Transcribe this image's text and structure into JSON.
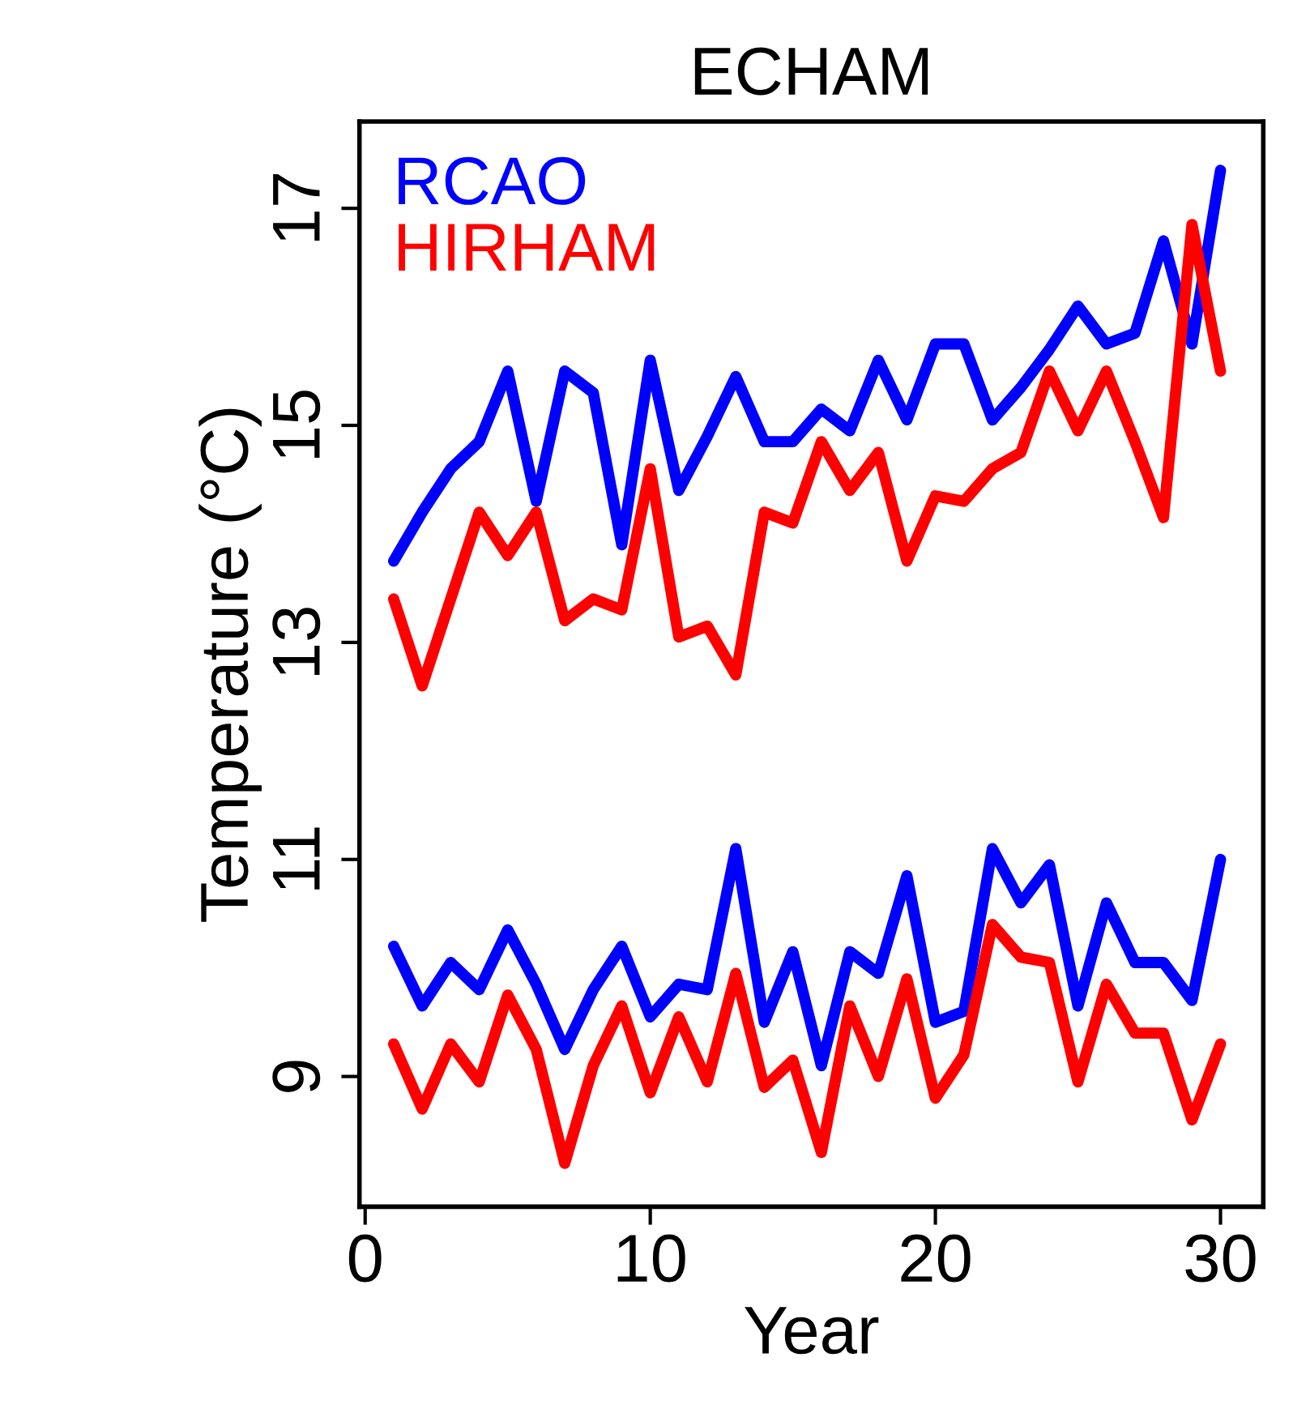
{
  "chart_data": {
    "type": "line",
    "title": "ECHAM",
    "xlabel": "Year",
    "ylabel": "Temperature (°C)",
    "x": [
      1,
      2,
      3,
      4,
      5,
      6,
      7,
      8,
      9,
      10,
      11,
      12,
      13,
      14,
      15,
      16,
      17,
      18,
      19,
      20,
      21,
      22,
      23,
      24,
      25,
      26,
      27,
      28,
      29,
      30
    ],
    "series": [
      {
        "name": "RCAO",
        "color": "#0000ff",
        "values": [
          13.75,
          14.2,
          14.6,
          14.85,
          15.5,
          14.3,
          15.5,
          15.3,
          13.9,
          15.6,
          14.4,
          14.9,
          15.45,
          14.85,
          14.85,
          15.15,
          14.95,
          15.6,
          15.05,
          15.75,
          15.75,
          15.05,
          15.35,
          15.7,
          16.1,
          15.75,
          15.85,
          16.7,
          15.75,
          17.35
        ]
      },
      {
        "name": "HIRHAM",
        "color": "#ff0000",
        "values": [
          13.4,
          12.6,
          13.4,
          14.2,
          13.8,
          14.2,
          13.2,
          13.4,
          13.3,
          14.6,
          13.05,
          13.15,
          12.7,
          14.2,
          14.1,
          14.85,
          14.4,
          14.75,
          13.75,
          14.35,
          14.3,
          14.6,
          14.75,
          15.5,
          14.95,
          15.5,
          14.85,
          14.15,
          16.85,
          15.5
        ]
      },
      {
        "color": "#0000ff",
        "values": [
          10.2,
          9.65,
          10.05,
          9.8,
          10.35,
          9.85,
          9.25,
          9.8,
          10.2,
          9.55,
          9.85,
          9.8,
          11.1,
          9.5,
          10.15,
          9.1,
          10.15,
          9.95,
          10.85,
          9.5,
          9.6,
          11.1,
          10.6,
          10.95,
          9.65,
          10.6,
          10.05,
          10.05,
          9.7,
          11.0
        ]
      },
      {
        "color": "#ff0000",
        "values": [
          9.3,
          8.7,
          9.3,
          8.95,
          9.75,
          9.25,
          8.2,
          9.1,
          9.65,
          8.85,
          9.55,
          8.95,
          9.95,
          8.9,
          9.15,
          8.3,
          9.65,
          9.0,
          9.9,
          8.8,
          9.2,
          10.4,
          10.1,
          10.05,
          8.95,
          9.85,
          9.4,
          9.4,
          8.6,
          9.3
        ]
      }
    ],
    "xlim": [
      -0.2,
      31.5
    ],
    "ylim": [
      7.8,
      17.8
    ],
    "xticks": [
      0,
      10,
      20,
      30
    ],
    "yticks": [
      9,
      11,
      13,
      15,
      17
    ],
    "grid": false,
    "legend": "top left",
    "marker": "none",
    "line_style": "solid"
  }
}
